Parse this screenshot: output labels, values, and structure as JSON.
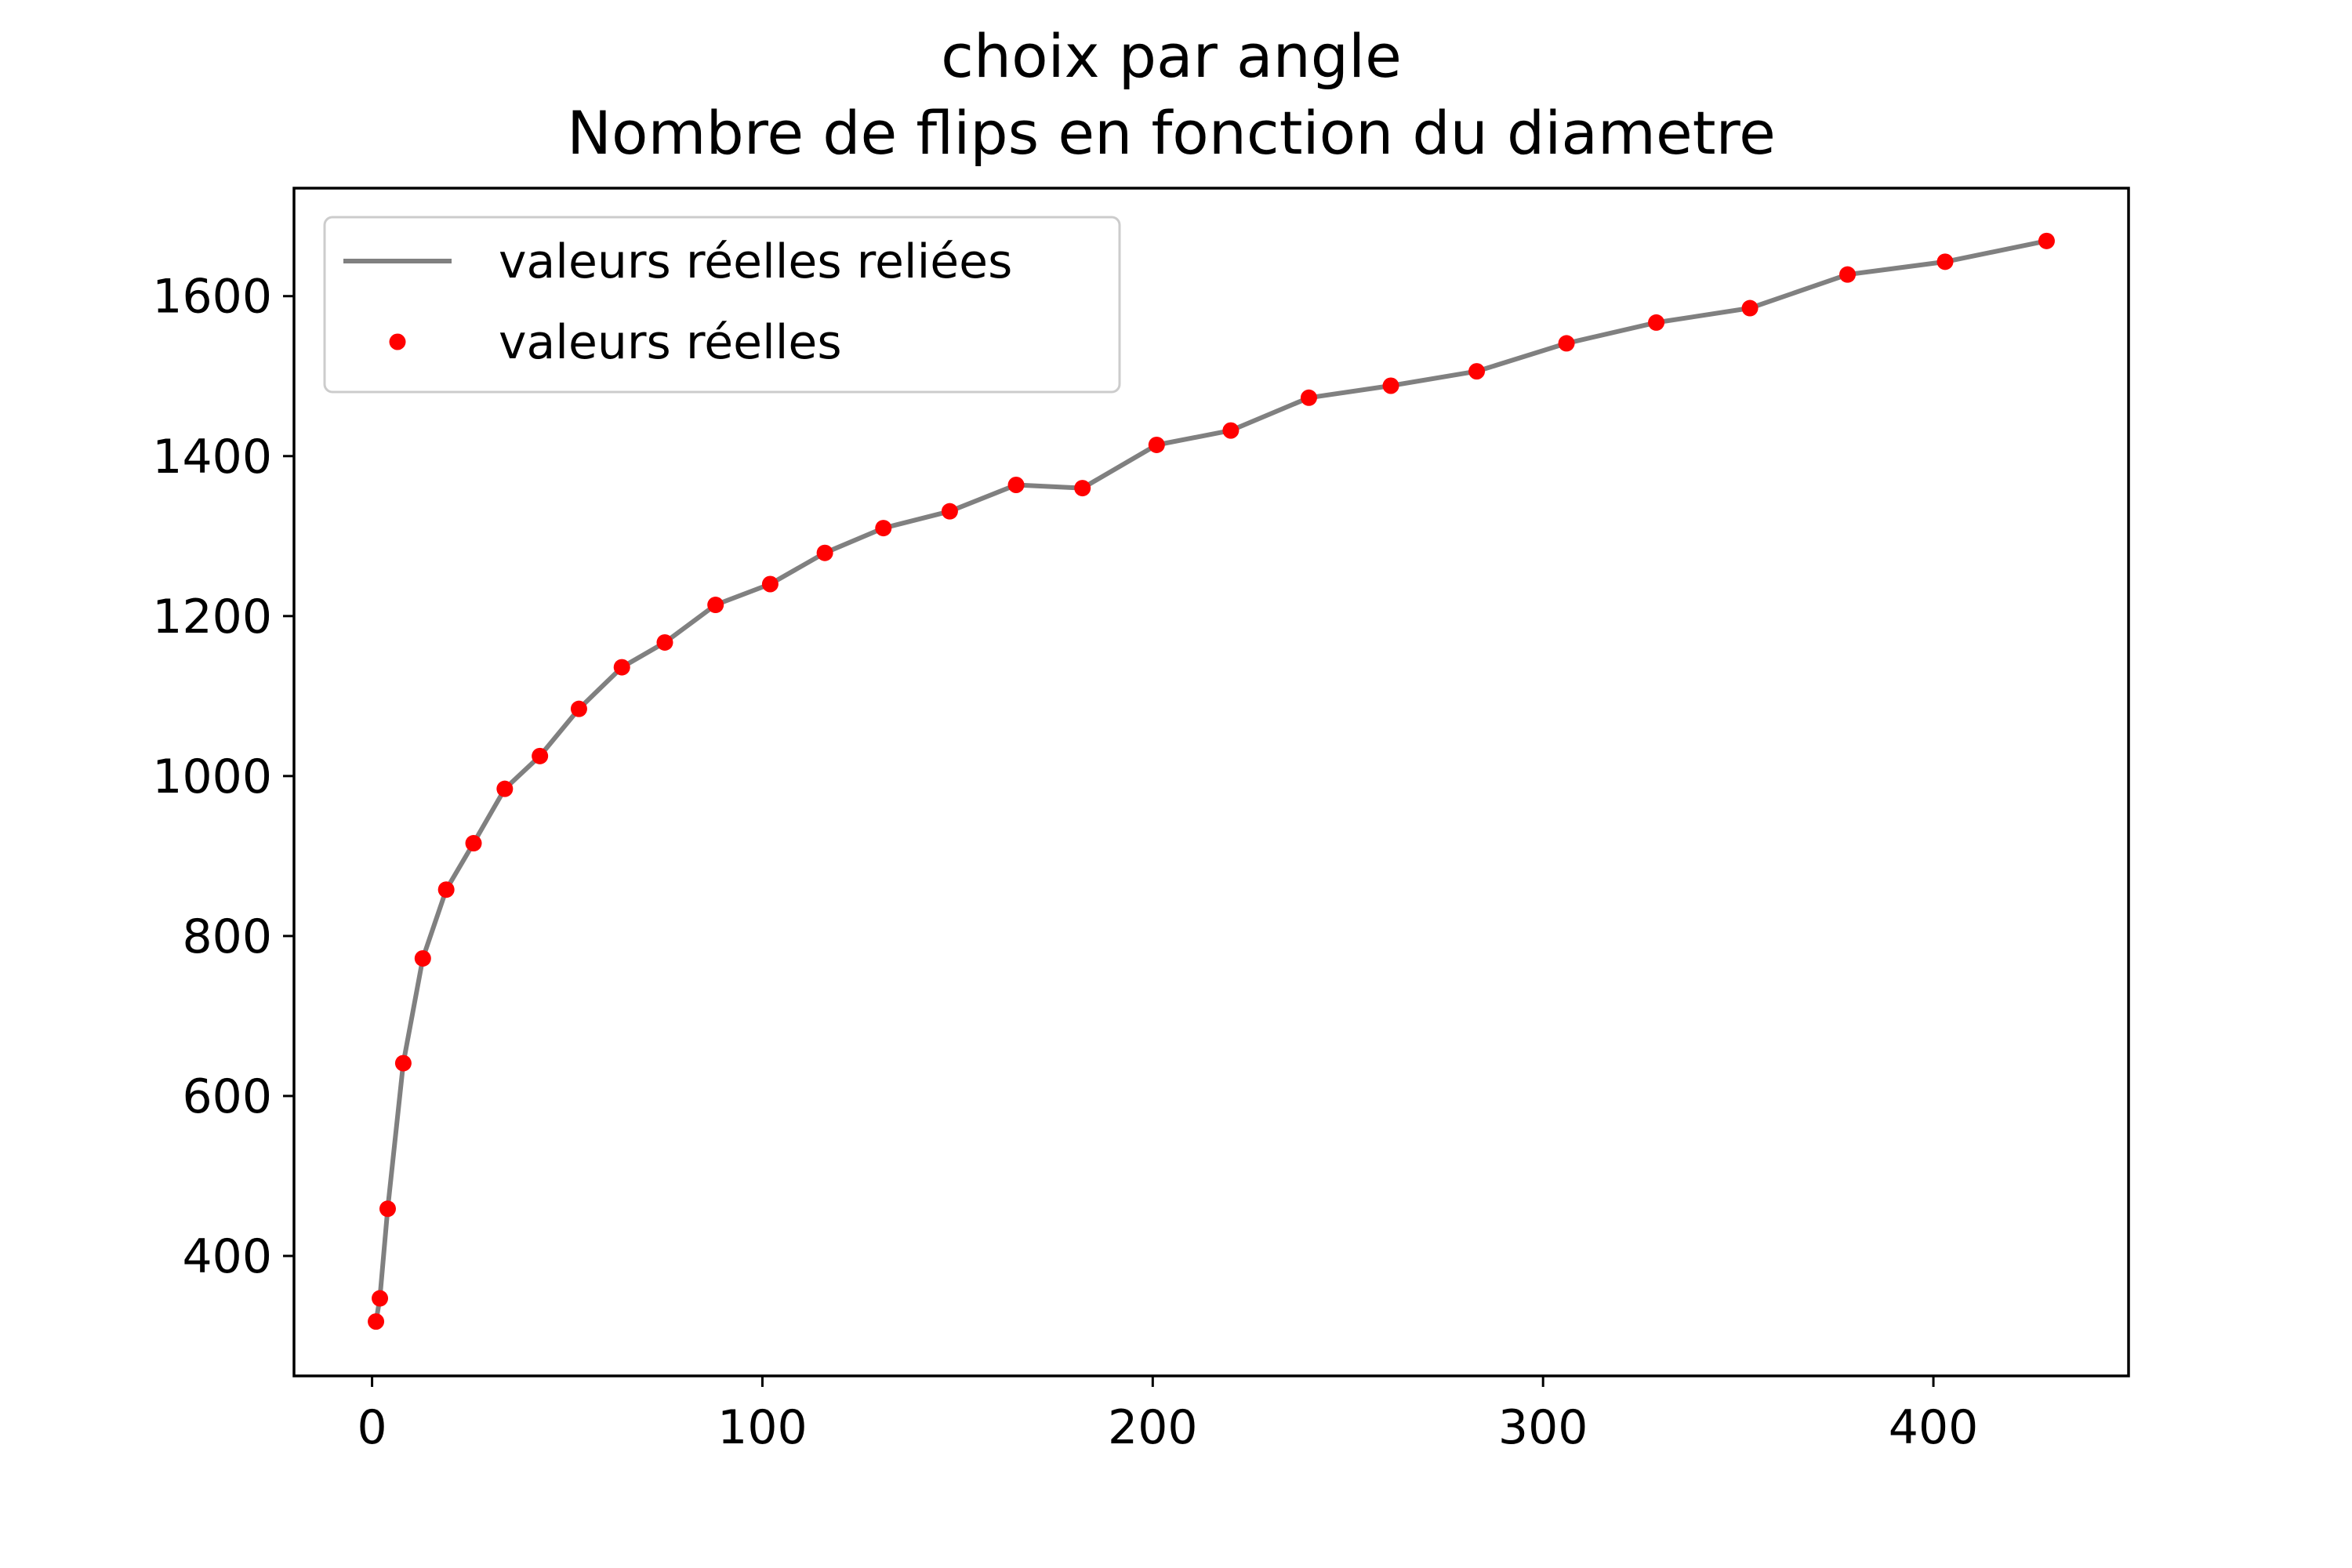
{
  "chart_data": {
    "type": "line",
    "title": "choix par angle",
    "subtitle": "Nombre de flips en fonction du diametre",
    "xlabel": "",
    "ylabel": "",
    "xlim": [
      -20,
      450
    ],
    "ylim": [
      250,
      1735
    ],
    "x_ticks": [
      0,
      100,
      200,
      300,
      400
    ],
    "y_ticks": [
      400,
      600,
      800,
      1000,
      1200,
      1400,
      1600
    ],
    "grid": false,
    "legend_position": "top-left",
    "legend": [
      {
        "label": "valeurs réelles reliées",
        "style": "line",
        "color": "#808080"
      },
      {
        "label": "valeurs réelles",
        "style": "points",
        "color": "#ff0000"
      }
    ],
    "series": [
      {
        "name": "valeurs réelles reliées",
        "style": "line",
        "color": "#808080",
        "x": [
          1,
          2,
          4,
          8,
          13,
          19,
          26,
          34,
          43,
          53,
          64,
          75,
          88,
          102,
          116,
          131,
          148,
          165,
          182,
          201,
          220,
          240,
          261,
          283,
          306,
          329,
          353,
          378,
          403,
          429
        ],
        "y": [
          318,
          347,
          459,
          641,
          772,
          858,
          916,
          984,
          1025,
          1084,
          1136,
          1167,
          1214,
          1240,
          1279,
          1310,
          1331,
          1364,
          1360,
          1414,
          1432,
          1473,
          1488,
          1506,
          1541,
          1567,
          1585,
          1627,
          1643,
          1669
        ]
      },
      {
        "name": "valeurs réelles",
        "style": "points",
        "color": "#ff0000",
        "x": [
          1,
          2,
          4,
          8,
          13,
          19,
          26,
          34,
          43,
          53,
          64,
          75,
          88,
          102,
          116,
          131,
          148,
          165,
          182,
          201,
          220,
          240,
          261,
          283,
          306,
          329,
          353,
          378,
          403,
          429
        ],
        "y": [
          318,
          347,
          459,
          641,
          772,
          858,
          916,
          984,
          1025,
          1084,
          1136,
          1167,
          1214,
          1240,
          1279,
          1310,
          1331,
          1364,
          1360,
          1414,
          1432,
          1473,
          1488,
          1506,
          1541,
          1567,
          1585,
          1627,
          1643,
          1669
        ]
      }
    ]
  }
}
